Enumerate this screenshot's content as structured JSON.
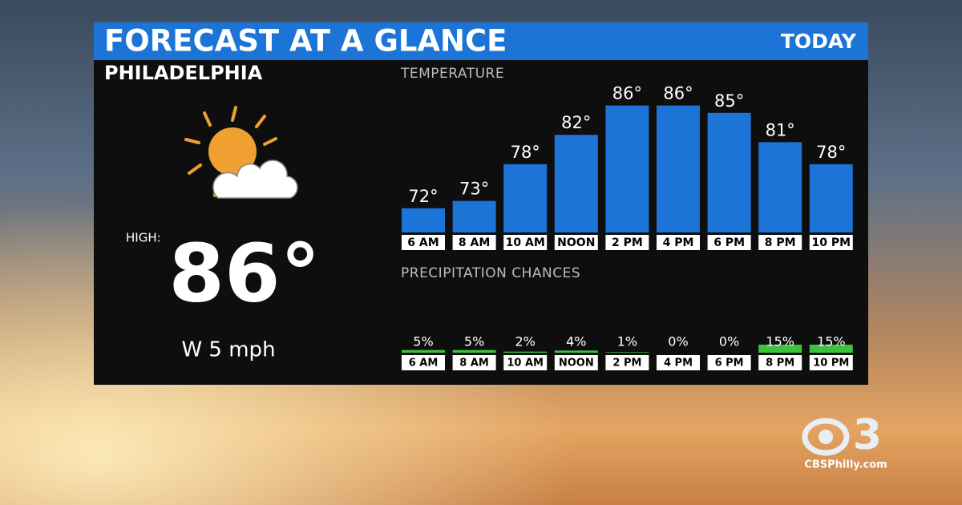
{
  "header": {
    "title": "FORECAST AT A GLANCE",
    "period": "TODAY"
  },
  "location": "PHILADELPHIA",
  "current": {
    "high_label": "HIGH:",
    "high": "86°",
    "wind": "W 5 mph"
  },
  "chart_data": [
    {
      "type": "bar",
      "title": "TEMPERATURE",
      "categories": [
        "6 AM",
        "8 AM",
        "10 AM",
        "NOON",
        "2 PM",
        "4 PM",
        "6 PM",
        "8 PM",
        "10 PM"
      ],
      "values": [
        72,
        73,
        78,
        82,
        86,
        86,
        85,
        81,
        78
      ],
      "value_labels": [
        "72°",
        "73°",
        "78°",
        "82°",
        "86°",
        "86°",
        "85°",
        "81°",
        "78°"
      ],
      "color": "#1b74d6",
      "ylim": [
        68.7,
        90
      ]
    },
    {
      "type": "bar",
      "title": "PRECIPITATION CHANCES",
      "categories": [
        "6 AM",
        "8 AM",
        "10 AM",
        "NOON",
        "2 PM",
        "4 PM",
        "6 PM",
        "8 PM",
        "10 PM"
      ],
      "values": [
        5,
        5,
        2,
        4,
        1,
        0,
        0,
        15,
        15
      ],
      "value_labels": [
        "5%",
        "5%",
        "2%",
        "4%",
        "1%",
        "0%",
        "0%",
        "15%",
        "15%"
      ],
      "color": "#3cc23c",
      "ylim": [
        0,
        100
      ]
    }
  ],
  "logo": {
    "mark": "3",
    "site": "CBSPhilly.com"
  }
}
